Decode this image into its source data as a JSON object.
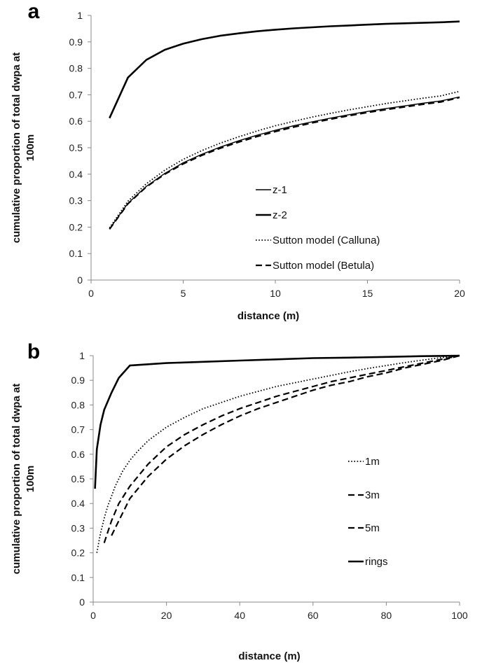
{
  "chart_data": [
    {
      "panel_label": "a",
      "type": "line",
      "xlabel": "distance (m)",
      "ylabel_lines": [
        "cumulative proportion of total dwpa at",
        "100m"
      ],
      "xlim": [
        0,
        20
      ],
      "ylim": [
        0,
        1
      ],
      "xticks": [
        "0",
        "5",
        "10",
        "15",
        "20"
      ],
      "yticks": [
        "0",
        "0.1",
        "0.2",
        "0.3",
        "0.4",
        "0.5",
        "0.6",
        "0.7",
        "0.8",
        "0.9",
        "1"
      ],
      "grid": false,
      "legend_position": "center-right",
      "series": [
        {
          "name": "z-1",
          "style": "solid-thin",
          "x": [
            1,
            2,
            3,
            4,
            5,
            6,
            7,
            8,
            9,
            10,
            11,
            12,
            13,
            14,
            15,
            16,
            17,
            18,
            19,
            20
          ],
          "y": [
            0.193,
            0.29,
            0.354,
            0.403,
            0.443,
            0.475,
            0.502,
            0.526,
            0.547,
            0.566,
            0.583,
            0.598,
            0.612,
            0.625,
            0.637,
            0.648,
            0.658,
            0.668,
            0.677,
            0.692
          ]
        },
        {
          "name": "z-2",
          "style": "solid-thick",
          "x": [
            1,
            2,
            3,
            4,
            5,
            6,
            7,
            8,
            9,
            10,
            11,
            12,
            13,
            14,
            15,
            16,
            17,
            18,
            19,
            20
          ],
          "y": [
            0.612,
            0.765,
            0.832,
            0.87,
            0.893,
            0.91,
            0.923,
            0.932,
            0.94,
            0.946,
            0.951,
            0.955,
            0.959,
            0.962,
            0.965,
            0.968,
            0.97,
            0.972,
            0.974,
            0.977
          ]
        },
        {
          "name": "Sutton model (Calluna)",
          "style": "dotted",
          "x": [
            1,
            2,
            3,
            4,
            5,
            6,
            7,
            8,
            9,
            10,
            11,
            12,
            13,
            14,
            15,
            16,
            17,
            18,
            19,
            20
          ],
          "y": [
            0.197,
            0.298,
            0.364,
            0.415,
            0.456,
            0.489,
            0.517,
            0.541,
            0.563,
            0.583,
            0.6,
            0.616,
            0.63,
            0.643,
            0.655,
            0.667,
            0.677,
            0.687,
            0.696,
            0.713
          ]
        },
        {
          "name": "Sutton model (Betula)",
          "style": "dashed",
          "x": [
            1,
            2,
            3,
            4,
            5,
            6,
            7,
            8,
            9,
            10,
            11,
            12,
            13,
            14,
            15,
            16,
            17,
            18,
            19,
            20
          ],
          "y": [
            0.192,
            0.288,
            0.352,
            0.4,
            0.439,
            0.471,
            0.498,
            0.521,
            0.542,
            0.561,
            0.578,
            0.594,
            0.608,
            0.621,
            0.633,
            0.644,
            0.654,
            0.664,
            0.673,
            0.69
          ]
        }
      ]
    },
    {
      "panel_label": "b",
      "type": "line",
      "xlabel": "distance (m)",
      "ylabel_lines": [
        "cumulative proportion of total dwpa at",
        "100m"
      ],
      "xlim": [
        0,
        100
      ],
      "ylim": [
        0,
        1
      ],
      "xticks": [
        "0",
        "20",
        "40",
        "60",
        "80",
        "100"
      ],
      "yticks": [
        "0",
        "0.1",
        "0.2",
        "0.3",
        "0.4",
        "0.5",
        "0.6",
        "0.7",
        "0.8",
        "0.9",
        "1"
      ],
      "grid": false,
      "legend_position": "center-right",
      "series": [
        {
          "name": "1m",
          "style": "dotted",
          "x": [
            1,
            2,
            3,
            4,
            5,
            6,
            7,
            8,
            10,
            12,
            15,
            20,
            25,
            30,
            35,
            40,
            45,
            50,
            55,
            60,
            65,
            70,
            75,
            80,
            85,
            90,
            95,
            100
          ],
          "y": [
            0.2,
            0.28,
            0.34,
            0.39,
            0.43,
            0.47,
            0.5,
            0.53,
            0.575,
            0.61,
            0.655,
            0.71,
            0.75,
            0.785,
            0.81,
            0.835,
            0.855,
            0.875,
            0.89,
            0.905,
            0.92,
            0.935,
            0.948,
            0.96,
            0.972,
            0.982,
            0.992,
            1.0
          ]
        },
        {
          "name": "3m",
          "style": "dashed",
          "x": [
            3,
            5,
            7,
            10,
            15,
            20,
            25,
            30,
            35,
            40,
            45,
            50,
            55,
            60,
            65,
            70,
            75,
            80,
            85,
            90,
            95,
            100
          ],
          "y": [
            0.24,
            0.33,
            0.4,
            0.47,
            0.56,
            0.63,
            0.68,
            0.72,
            0.755,
            0.785,
            0.81,
            0.835,
            0.855,
            0.875,
            0.895,
            0.91,
            0.925,
            0.94,
            0.955,
            0.97,
            0.985,
            1.0
          ]
        },
        {
          "name": "5m",
          "style": "dashed",
          "x": [
            5,
            7,
            10,
            15,
            20,
            25,
            30,
            35,
            40,
            45,
            50,
            55,
            60,
            65,
            70,
            75,
            80,
            85,
            90,
            95,
            100
          ],
          "y": [
            0.27,
            0.33,
            0.42,
            0.51,
            0.58,
            0.635,
            0.68,
            0.72,
            0.755,
            0.785,
            0.81,
            0.835,
            0.86,
            0.88,
            0.895,
            0.915,
            0.93,
            0.95,
            0.965,
            0.98,
            1.0
          ]
        },
        {
          "name": "rings",
          "style": "solid-thick",
          "x": [
            0.5,
            1,
            2,
            3,
            5,
            7,
            10,
            15,
            20,
            30,
            40,
            50,
            60,
            70,
            80,
            90,
            100
          ],
          "y": [
            0.46,
            0.62,
            0.72,
            0.78,
            0.85,
            0.91,
            0.96,
            0.965,
            0.97,
            0.975,
            0.98,
            0.985,
            0.99,
            0.992,
            0.995,
            0.998,
            1.0
          ]
        }
      ]
    }
  ]
}
